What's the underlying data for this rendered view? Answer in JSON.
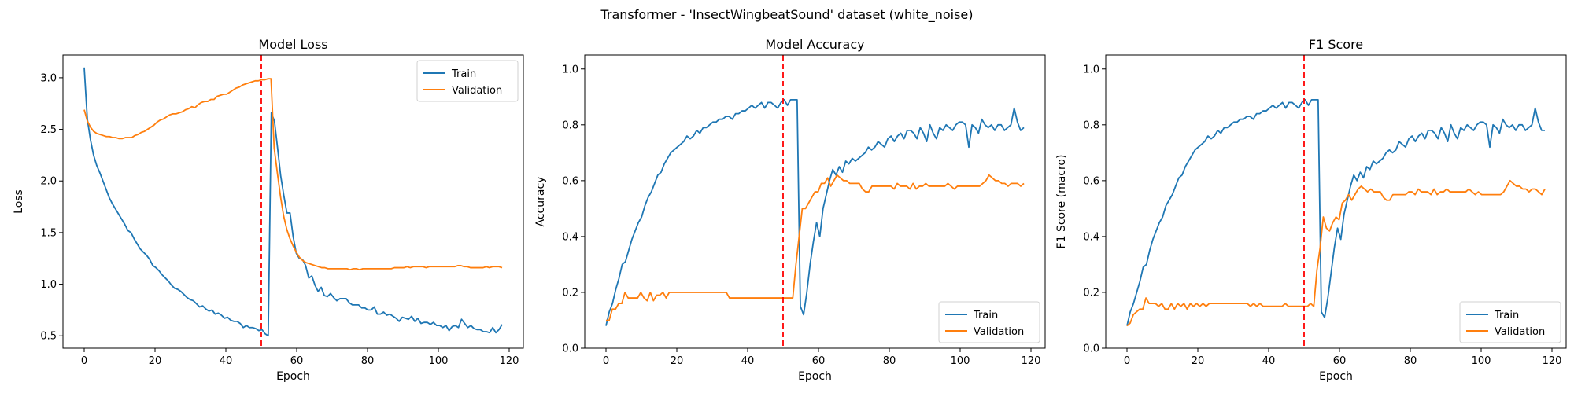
{
  "suptitle": "Transformer - 'InsectWingbeatSound' dataset (white_noise)",
  "colors": {
    "train": "#1f77b4",
    "validation": "#ff7f0e",
    "divider": "#ff0000"
  },
  "chart_data": [
    {
      "type": "line",
      "title": "Model Loss",
      "xlabel": "Epoch",
      "ylabel": "Loss",
      "xlim": [
        -6,
        124
      ],
      "ylim": [
        0.38,
        3.22
      ],
      "xticks": [
        0,
        20,
        40,
        60,
        80,
        100,
        120
      ],
      "yticks": [
        0.5,
        1.0,
        1.5,
        2.0,
        2.5,
        3.0
      ],
      "ytick_labels": [
        "0.5",
        "1.0",
        "1.5",
        "2.0",
        "2.5",
        "3.0"
      ],
      "grid": false,
      "legend": "top-right",
      "vline_x": 50,
      "series": [
        {
          "name": "Train",
          "color_key": "train",
          "values": [
            3.1,
            2.6,
            2.4,
            2.25,
            2.15,
            2.08,
            2.0,
            1.92,
            1.84,
            1.78,
            1.73,
            1.68,
            1.63,
            1.58,
            1.52,
            1.5,
            1.44,
            1.39,
            1.34,
            1.31,
            1.28,
            1.24,
            1.18,
            1.16,
            1.13,
            1.09,
            1.06,
            1.03,
            0.99,
            0.96,
            0.95,
            0.93,
            0.9,
            0.87,
            0.85,
            0.84,
            0.81,
            0.78,
            0.79,
            0.76,
            0.74,
            0.75,
            0.71,
            0.72,
            0.7,
            0.67,
            0.68,
            0.65,
            0.64,
            0.64,
            0.62,
            0.58,
            0.6,
            0.58,
            0.58,
            0.57,
            0.55,
            0.56,
            0.52,
            0.5,
            2.66,
            2.58,
            2.32,
            2.05,
            1.86,
            1.69,
            1.69,
            1.46,
            1.3,
            1.25,
            1.24,
            1.18,
            1.06,
            1.08,
            0.99,
            0.93,
            0.97,
            0.89,
            0.88,
            0.91,
            0.87,
            0.84,
            0.86,
            0.86,
            0.86,
            0.82,
            0.8,
            0.8,
            0.8,
            0.77,
            0.77,
            0.75,
            0.75,
            0.78,
            0.71,
            0.71,
            0.73,
            0.7,
            0.71,
            0.69,
            0.67,
            0.64,
            0.68,
            0.67,
            0.66,
            0.69,
            0.64,
            0.67,
            0.62,
            0.63,
            0.63,
            0.61,
            0.63,
            0.6,
            0.6,
            0.58,
            0.6,
            0.55,
            0.59,
            0.6,
            0.58,
            0.66,
            0.62,
            0.58,
            0.6,
            0.57,
            0.56,
            0.56,
            0.54,
            0.54,
            0.53,
            0.58,
            0.53,
            0.56,
            0.61
          ]
        },
        {
          "name": "Validation",
          "color_key": "validation",
          "values": [
            2.69,
            2.58,
            2.52,
            2.48,
            2.46,
            2.45,
            2.44,
            2.43,
            2.43,
            2.42,
            2.42,
            2.41,
            2.41,
            2.42,
            2.42,
            2.42,
            2.44,
            2.45,
            2.47,
            2.48,
            2.5,
            2.52,
            2.54,
            2.57,
            2.59,
            2.6,
            2.62,
            2.64,
            2.65,
            2.65,
            2.66,
            2.67,
            2.69,
            2.7,
            2.72,
            2.71,
            2.74,
            2.76,
            2.77,
            2.77,
            2.79,
            2.79,
            2.82,
            2.83,
            2.84,
            2.84,
            2.86,
            2.88,
            2.9,
            2.91,
            2.93,
            2.94,
            2.95,
            2.96,
            2.97,
            2.97,
            2.98,
            2.98,
            2.99,
            2.99,
            2.32,
            2.08,
            1.85,
            1.66,
            1.53,
            1.44,
            1.37,
            1.31,
            1.26,
            1.23,
            1.21,
            1.2,
            1.19,
            1.18,
            1.17,
            1.16,
            1.16,
            1.15,
            1.15,
            1.15,
            1.15,
            1.15,
            1.15,
            1.15,
            1.14,
            1.15,
            1.15,
            1.14,
            1.15,
            1.15,
            1.15,
            1.15,
            1.15,
            1.15,
            1.15,
            1.15,
            1.15,
            1.15,
            1.16,
            1.16,
            1.16,
            1.16,
            1.17,
            1.16,
            1.17,
            1.17,
            1.17,
            1.17,
            1.16,
            1.17,
            1.17,
            1.17,
            1.17,
            1.17,
            1.17,
            1.17,
            1.17,
            1.17,
            1.18,
            1.18,
            1.17,
            1.17,
            1.16,
            1.16,
            1.16,
            1.16,
            1.16,
            1.17,
            1.16,
            1.17,
            1.17,
            1.17,
            1.16
          ]
        }
      ]
    },
    {
      "type": "line",
      "title": "Model Accuracy",
      "xlabel": "Epoch",
      "ylabel": "Accuracy",
      "xlim": [
        -6,
        124
      ],
      "ylim": [
        0.0,
        1.05
      ],
      "xticks": [
        0,
        20,
        40,
        60,
        80,
        100,
        120
      ],
      "yticks": [
        0.0,
        0.2,
        0.4,
        0.6,
        0.8,
        1.0
      ],
      "ytick_labels": [
        "0.0",
        "0.2",
        "0.4",
        "0.6",
        "0.8",
        "1.0"
      ],
      "grid": false,
      "legend": "bottom-right",
      "vline_x": 50,
      "series": [
        {
          "name": "Train",
          "color_key": "train",
          "values": [
            0.08,
            0.13,
            0.16,
            0.21,
            0.25,
            0.3,
            0.31,
            0.35,
            0.39,
            0.42,
            0.45,
            0.47,
            0.51,
            0.54,
            0.56,
            0.59,
            0.62,
            0.63,
            0.66,
            0.68,
            0.7,
            0.71,
            0.72,
            0.73,
            0.74,
            0.76,
            0.75,
            0.76,
            0.78,
            0.77,
            0.79,
            0.79,
            0.8,
            0.81,
            0.81,
            0.82,
            0.82,
            0.83,
            0.83,
            0.82,
            0.84,
            0.84,
            0.85,
            0.85,
            0.86,
            0.87,
            0.86,
            0.87,
            0.88,
            0.86,
            0.88,
            0.88,
            0.87,
            0.86,
            0.88,
            0.89,
            0.87,
            0.89,
            0.89,
            0.89,
            0.15,
            0.12,
            0.2,
            0.3,
            0.38,
            0.45,
            0.4,
            0.5,
            0.55,
            0.6,
            0.64,
            0.62,
            0.65,
            0.63,
            0.67,
            0.66,
            0.68,
            0.67,
            0.68,
            0.69,
            0.7,
            0.72,
            0.71,
            0.72,
            0.74,
            0.73,
            0.72,
            0.75,
            0.76,
            0.74,
            0.76,
            0.77,
            0.75,
            0.78,
            0.78,
            0.77,
            0.75,
            0.79,
            0.77,
            0.74,
            0.8,
            0.77,
            0.75,
            0.79,
            0.78,
            0.8,
            0.79,
            0.78,
            0.8,
            0.81,
            0.81,
            0.8,
            0.72,
            0.8,
            0.79,
            0.77,
            0.82,
            0.8,
            0.79,
            0.8,
            0.78,
            0.8,
            0.8,
            0.78,
            0.79,
            0.8,
            0.86,
            0.81,
            0.78,
            0.79
          ]
        },
        {
          "name": "Validation",
          "color_key": "validation",
          "values": [
            0.1,
            0.1,
            0.14,
            0.14,
            0.16,
            0.16,
            0.2,
            0.18,
            0.18,
            0.18,
            0.18,
            0.2,
            0.18,
            0.17,
            0.2,
            0.17,
            0.19,
            0.19,
            0.2,
            0.18,
            0.2,
            0.2,
            0.2,
            0.2,
            0.2,
            0.2,
            0.2,
            0.2,
            0.2,
            0.2,
            0.2,
            0.2,
            0.2,
            0.2,
            0.2,
            0.2,
            0.2,
            0.2,
            0.2,
            0.18,
            0.18,
            0.18,
            0.18,
            0.18,
            0.18,
            0.18,
            0.18,
            0.18,
            0.18,
            0.18,
            0.18,
            0.18,
            0.18,
            0.18,
            0.18,
            0.18,
            0.18,
            0.18,
            0.18,
            0.18,
            0.3,
            0.4,
            0.5,
            0.5,
            0.52,
            0.54,
            0.56,
            0.56,
            0.59,
            0.59,
            0.61,
            0.58,
            0.6,
            0.62,
            0.61,
            0.6,
            0.6,
            0.59,
            0.59,
            0.59,
            0.59,
            0.57,
            0.56,
            0.56,
            0.58,
            0.58,
            0.58,
            0.58,
            0.58,
            0.58,
            0.58,
            0.57,
            0.59,
            0.58,
            0.58,
            0.58,
            0.57,
            0.59,
            0.57,
            0.58,
            0.58,
            0.59,
            0.58,
            0.58,
            0.58,
            0.58,
            0.58,
            0.58,
            0.59,
            0.58,
            0.57,
            0.58,
            0.58,
            0.58,
            0.58,
            0.58,
            0.58,
            0.58,
            0.58,
            0.59,
            0.6,
            0.62,
            0.61,
            0.6,
            0.6,
            0.59,
            0.59,
            0.58,
            0.59,
            0.59,
            0.59,
            0.58,
            0.59
          ]
        }
      ]
    },
    {
      "type": "line",
      "title": "F1 Score",
      "xlabel": "Epoch",
      "ylabel": "F1 Score (macro)",
      "xlim": [
        -6,
        124
      ],
      "ylim": [
        0.0,
        1.05
      ],
      "xticks": [
        0,
        20,
        40,
        60,
        80,
        100,
        120
      ],
      "yticks": [
        0.0,
        0.2,
        0.4,
        0.6,
        0.8,
        1.0
      ],
      "ytick_labels": [
        "0.0",
        "0.2",
        "0.4",
        "0.6",
        "0.8",
        "1.0"
      ],
      "grid": false,
      "legend": "bottom-right",
      "vline_x": 50,
      "series": [
        {
          "name": "Train",
          "color_key": "train",
          "values": [
            0.08,
            0.13,
            0.16,
            0.2,
            0.24,
            0.29,
            0.3,
            0.35,
            0.39,
            0.42,
            0.45,
            0.47,
            0.51,
            0.53,
            0.55,
            0.58,
            0.61,
            0.62,
            0.65,
            0.67,
            0.69,
            0.71,
            0.72,
            0.73,
            0.74,
            0.76,
            0.75,
            0.76,
            0.78,
            0.77,
            0.79,
            0.79,
            0.8,
            0.81,
            0.81,
            0.82,
            0.82,
            0.83,
            0.83,
            0.82,
            0.84,
            0.84,
            0.85,
            0.85,
            0.86,
            0.87,
            0.86,
            0.87,
            0.88,
            0.86,
            0.88,
            0.88,
            0.87,
            0.86,
            0.88,
            0.89,
            0.87,
            0.89,
            0.89,
            0.89,
            0.13,
            0.11,
            0.18,
            0.27,
            0.36,
            0.43,
            0.39,
            0.48,
            0.53,
            0.58,
            0.62,
            0.6,
            0.63,
            0.61,
            0.65,
            0.64,
            0.67,
            0.66,
            0.67,
            0.68,
            0.7,
            0.71,
            0.7,
            0.71,
            0.74,
            0.73,
            0.72,
            0.75,
            0.76,
            0.74,
            0.76,
            0.77,
            0.75,
            0.78,
            0.78,
            0.77,
            0.75,
            0.79,
            0.77,
            0.74,
            0.8,
            0.77,
            0.75,
            0.79,
            0.78,
            0.8,
            0.79,
            0.78,
            0.8,
            0.81,
            0.81,
            0.8,
            0.72,
            0.8,
            0.79,
            0.77,
            0.82,
            0.8,
            0.79,
            0.8,
            0.78,
            0.8,
            0.8,
            0.78,
            0.79,
            0.8,
            0.86,
            0.81,
            0.78,
            0.78
          ]
        },
        {
          "name": "Validation",
          "color_key": "validation",
          "values": [
            0.08,
            0.09,
            0.12,
            0.13,
            0.14,
            0.14,
            0.18,
            0.16,
            0.16,
            0.16,
            0.15,
            0.16,
            0.14,
            0.14,
            0.16,
            0.14,
            0.16,
            0.15,
            0.16,
            0.14,
            0.16,
            0.15,
            0.16,
            0.15,
            0.16,
            0.15,
            0.16,
            0.16,
            0.16,
            0.16,
            0.16,
            0.16,
            0.16,
            0.16,
            0.16,
            0.16,
            0.16,
            0.16,
            0.16,
            0.15,
            0.16,
            0.15,
            0.16,
            0.15,
            0.15,
            0.15,
            0.15,
            0.15,
            0.15,
            0.15,
            0.16,
            0.15,
            0.15,
            0.15,
            0.15,
            0.15,
            0.15,
            0.15,
            0.16,
            0.15,
            0.28,
            0.36,
            0.47,
            0.43,
            0.42,
            0.45,
            0.47,
            0.46,
            0.52,
            0.53,
            0.55,
            0.53,
            0.55,
            0.57,
            0.58,
            0.57,
            0.56,
            0.57,
            0.56,
            0.56,
            0.56,
            0.54,
            0.53,
            0.53,
            0.55,
            0.55,
            0.55,
            0.55,
            0.55,
            0.56,
            0.56,
            0.55,
            0.57,
            0.56,
            0.56,
            0.56,
            0.55,
            0.57,
            0.55,
            0.56,
            0.56,
            0.57,
            0.56,
            0.56,
            0.56,
            0.56,
            0.56,
            0.56,
            0.57,
            0.56,
            0.55,
            0.56,
            0.55,
            0.55,
            0.55,
            0.55,
            0.55,
            0.55,
            0.55,
            0.56,
            0.58,
            0.6,
            0.59,
            0.58,
            0.58,
            0.57,
            0.57,
            0.56,
            0.57,
            0.57,
            0.56,
            0.55,
            0.57
          ]
        }
      ]
    }
  ]
}
